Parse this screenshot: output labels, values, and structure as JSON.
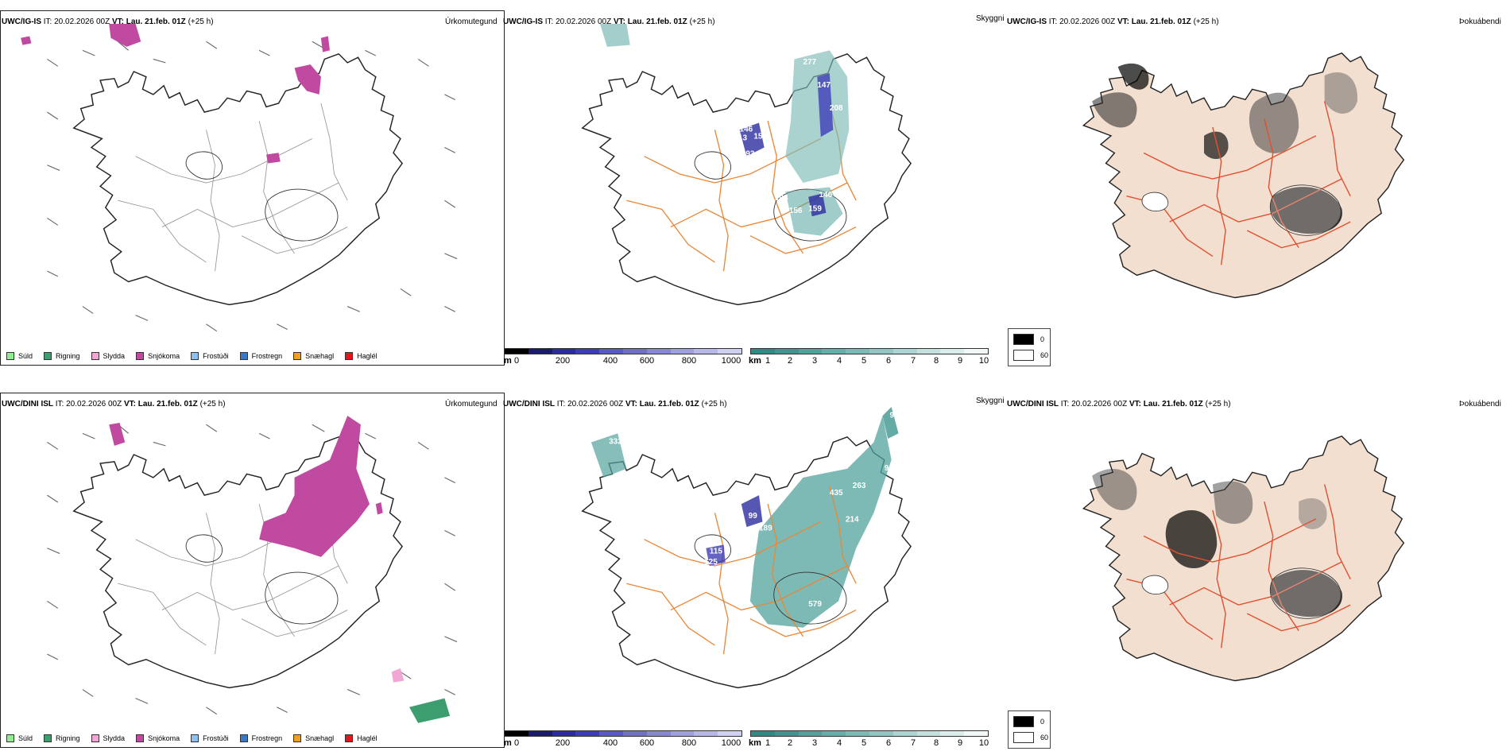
{
  "rows": [
    {
      "model": "UWC/IG-IS",
      "it_label": "IT:",
      "it_value": "20.02.2026 00Z",
      "vt_label": "VT:",
      "vt_value": "Lau. 21.feb. 01Z",
      "lead": "(+25 h)"
    },
    {
      "model": "UWC/DINI ISL",
      "it_label": "IT:",
      "it_value": "20.02.2026 00Z",
      "vt_label": "VT:",
      "vt_value": "Lau. 21.feb. 01Z",
      "lead": "(+25 h)"
    }
  ],
  "panel_titles": {
    "precip_type": "Úrkomutegund",
    "visibility": "Skyggni",
    "fog": "Þokuábendi"
  },
  "precip_legend": [
    {
      "label": "Súld",
      "color": "#90ee90"
    },
    {
      "label": "Rigning",
      "color": "#3c9e6e"
    },
    {
      "label": "Slydda",
      "color": "#f2a6d4"
    },
    {
      "label": "Snjókoma",
      "color": "#c04aa0"
    },
    {
      "label": "Frostúði",
      "color": "#8fc0ef"
    },
    {
      "label": "Frostregn",
      "color": "#3a78c4"
    },
    {
      "label": "Snæhagl",
      "color": "#f0a020"
    },
    {
      "label": "Haglél",
      "color": "#e8141c"
    }
  ],
  "ceiling_bar": {
    "unit": "m",
    "ticks": [
      "0",
      "200",
      "400",
      "600",
      "800",
      "1000"
    ],
    "colors": [
      "#000000",
      "#1a1a70",
      "#2c2ca0",
      "#3d3db8",
      "#5a5ac4",
      "#7070c8",
      "#8888d2",
      "#a0a0dc",
      "#b8b8e6",
      "#d0d0f0"
    ]
  },
  "visibility_bar": {
    "unit": "km",
    "ticks": [
      "1",
      "2",
      "3",
      "4",
      "5",
      "6",
      "7",
      "8",
      "9",
      "10"
    ],
    "colors": [
      "#2e8b83",
      "#3f968f",
      "#52a29c",
      "#67aeaa",
      "#7dbab6",
      "#94c7c3",
      "#acd4d1",
      "#c4e1de",
      "#dbeeec",
      "#f1f8f7"
    ]
  },
  "fog_legend": [
    {
      "label": "0",
      "color": "#000000"
    },
    {
      "label": "60",
      "color": "#ffffff"
    }
  ],
  "map_labels": {
    "top": [
      "263",
      "277",
      "147",
      "208",
      "146",
      "156",
      "193",
      "194",
      "146",
      "159",
      "156",
      "113",
      "95"
    ],
    "bottom": [
      "332",
      "95",
      "958",
      "945",
      "435",
      "263",
      "214",
      "99",
      "189",
      "115",
      "125",
      "579"
    ]
  }
}
